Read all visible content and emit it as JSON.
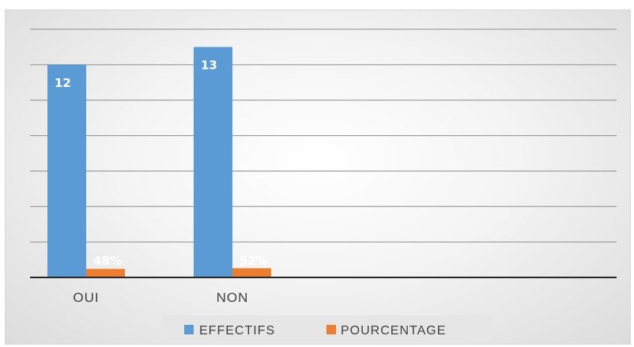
{
  "chart_data": {
    "type": "bar",
    "categories": [
      "OUI",
      "NON"
    ],
    "series": [
      {
        "name": "EFFECTIFS",
        "values": [
          12,
          13
        ],
        "labels": [
          "12",
          "13"
        ],
        "color": "#5b9bd5"
      },
      {
        "name": "POURCENTAGE",
        "values": [
          0.48,
          0.52
        ],
        "labels": [
          "48%",
          "52%"
        ],
        "color": "#ed7d31"
      }
    ],
    "ylim": [
      0,
      14
    ],
    "y_gridline_step": 2,
    "grid": true,
    "y_tick_labels_visible": false,
    "legend_position": "bottom",
    "title": "",
    "xlabel": "",
    "ylabel": ""
  }
}
